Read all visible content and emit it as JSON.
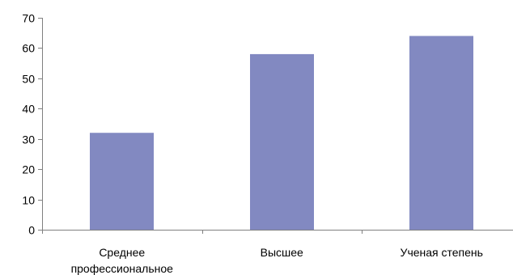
{
  "chart_data": {
    "type": "bar",
    "categories": [
      "Среднее профессиональное",
      "Высшее",
      "Ученая степень"
    ],
    "category_lines": [
      [
        "Среднее",
        "профессиональное"
      ],
      [
        "Высшее"
      ],
      [
        "Ученая степень"
      ]
    ],
    "values": [
      32,
      58,
      64
    ],
    "ylim": [
      0,
      70
    ],
    "y_ticks": [
      0,
      10,
      20,
      30,
      40,
      50,
      60,
      70
    ],
    "title": "",
    "xlabel": "",
    "ylabel": "",
    "grid": false,
    "legend": "none",
    "colors": {
      "bar": "#8289C1",
      "axis": "#808080"
    }
  }
}
